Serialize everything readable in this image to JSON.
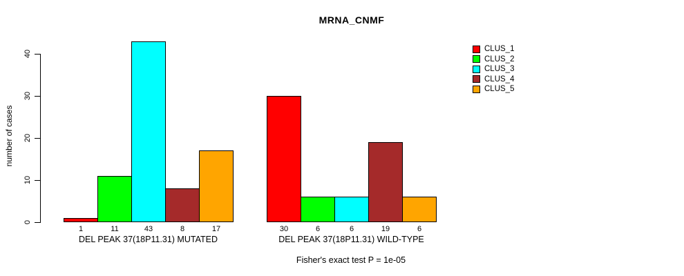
{
  "chart_data": {
    "type": "bar",
    "title": "MRNA_CNMF",
    "ylabel": "number of cases",
    "ylim": [
      0,
      43
    ],
    "yticks": [
      0,
      10,
      20,
      30,
      40
    ],
    "grid": false,
    "background": "#FFFFFF",
    "categories": [
      "DEL PEAK 37(18P11.31) MUTATED",
      "DEL PEAK 37(18P11.31) WILD-TYPE"
    ],
    "series": [
      {
        "name": "CLUS_1",
        "color": "#FF0000",
        "values": [
          1,
          30
        ]
      },
      {
        "name": "CLUS_2",
        "color": "#00FF00",
        "values": [
          11,
          6
        ]
      },
      {
        "name": "CLUS_3",
        "color": "#00FFFF",
        "values": [
          43,
          6
        ]
      },
      {
        "name": "CLUS_4",
        "color": "#A52A2A",
        "values": [
          8,
          19
        ]
      },
      {
        "name": "CLUS_5",
        "color": "#FFA500",
        "values": [
          17,
          6
        ]
      }
    ],
    "bar_value_labels_shown": true,
    "legend": {
      "position": "right",
      "entries": [
        "CLUS_1",
        "CLUS_2",
        "CLUS_3",
        "CLUS_4",
        "CLUS_5"
      ]
    },
    "annotation": "Fisher's exact test P = 1e-05"
  }
}
